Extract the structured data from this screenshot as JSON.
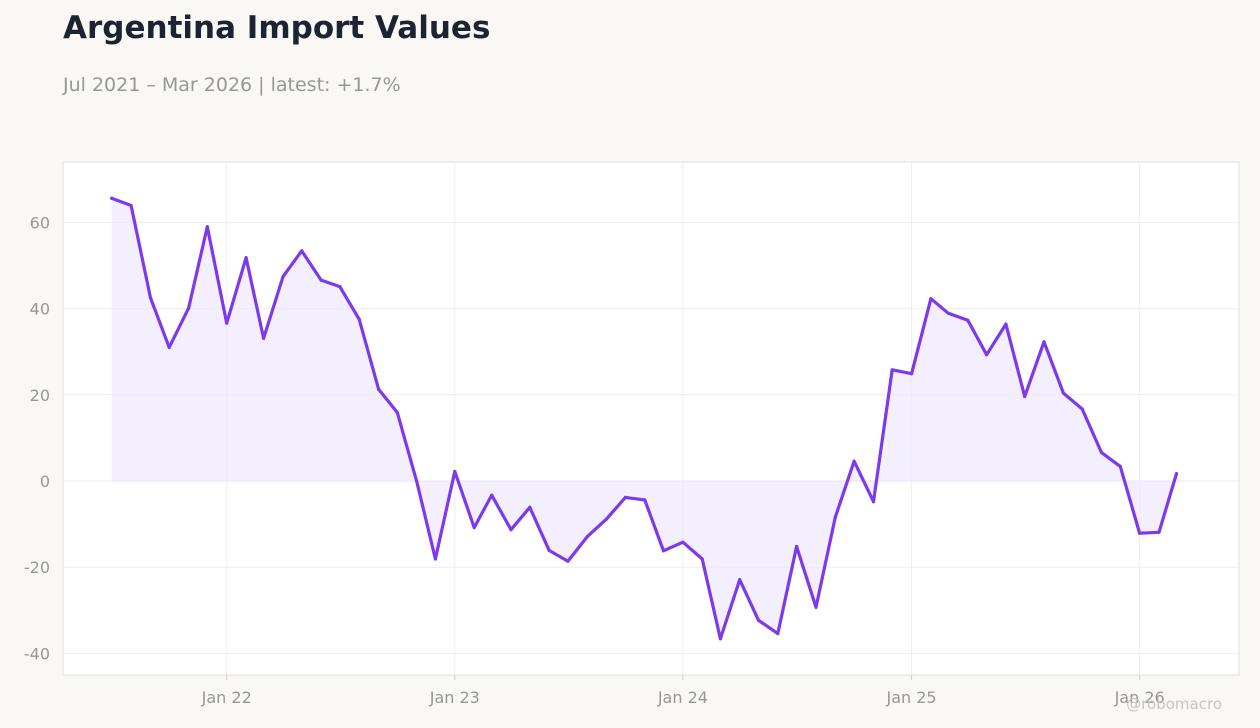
{
  "header": {
    "title": "Argentina Import Values",
    "subtitle": "Jul 2021 – Mar 2026 | latest: +1.7%"
  },
  "watermark": "@robomacro",
  "colors": {
    "line": "#7c3aed",
    "fill": "#ede7fd",
    "background": "#f9f8f5",
    "plot_background": "#ffffff",
    "grid": "#f0eeeb",
    "tick_text": "#9a9690"
  },
  "chart_data": {
    "type": "area",
    "title": "Argentina Import Values",
    "subtitle": "Jul 2021 – Mar 2026 | latest: +1.7%",
    "xlabel": "",
    "ylabel": "",
    "grid": true,
    "legend": "none",
    "ylim": [
      -45,
      74
    ],
    "xlim": [
      "2021-04-14",
      "2026-06-09"
    ],
    "x_ticks": [
      {
        "label": "Jan 22",
        "date": "2022-01-01"
      },
      {
        "label": "Jan 23",
        "date": "2023-01-01"
      },
      {
        "label": "Jan 24",
        "date": "2024-01-01"
      },
      {
        "label": "Jan 25",
        "date": "2025-01-01"
      },
      {
        "label": "Jan 26",
        "date": "2026-01-01"
      }
    ],
    "y_ticks": [
      -40,
      -20,
      0,
      20,
      40,
      60
    ],
    "series": [
      {
        "x": [
          "2021-07",
          "2021-08",
          "2021-09",
          "2021-10",
          "2021-11",
          "2021-12",
          "2022-01",
          "2022-02",
          "2022-03",
          "2022-04",
          "2022-05",
          "2022-06",
          "2022-07",
          "2022-08",
          "2022-09",
          "2022-10",
          "2022-11",
          "2022-12",
          "2023-01",
          "2023-02",
          "2023-03",
          "2023-04",
          "2023-05",
          "2023-06",
          "2023-07",
          "2023-08",
          "2023-09",
          "2023-10",
          "2023-11",
          "2023-12",
          "2024-01",
          "2024-02",
          "2024-03",
          "2024-04",
          "2024-05",
          "2024-06",
          "2024-07",
          "2024-08",
          "2024-09",
          "2024-10",
          "2024-11",
          "2024-12",
          "2025-01",
          "2025-02",
          "2025-03",
          "2025-04",
          "2025-05",
          "2025-06",
          "2025-07",
          "2025-08",
          "2025-09",
          "2025-10",
          "2025-11",
          "2025-12",
          "2026-01",
          "2026-02",
          "2026-03"
        ],
        "values": [
          65.6,
          63.9,
          42.5,
          31.0,
          40.1,
          59.0,
          36.6,
          51.8,
          33.1,
          47.4,
          53.4,
          46.6,
          45.1,
          37.5,
          21.3,
          15.9,
          -0.1,
          -18.1,
          2.2,
          -10.8,
          -3.3,
          -11.3,
          -6.1,
          -16.1,
          -18.6,
          -12.9,
          -8.8,
          -3.8,
          -4.4,
          -16.2,
          -14.2,
          -18.1,
          -36.6,
          -22.9,
          -32.3,
          -35.4,
          -15.2,
          -29.3,
          -8.4,
          4.6,
          -4.8,
          25.8,
          24.9,
          42.3,
          38.9,
          37.3,
          29.3,
          36.4,
          19.6,
          32.3,
          20.4,
          16.7,
          6.6,
          3.4,
          -12.1,
          -11.9,
          1.7
        ]
      }
    ]
  }
}
